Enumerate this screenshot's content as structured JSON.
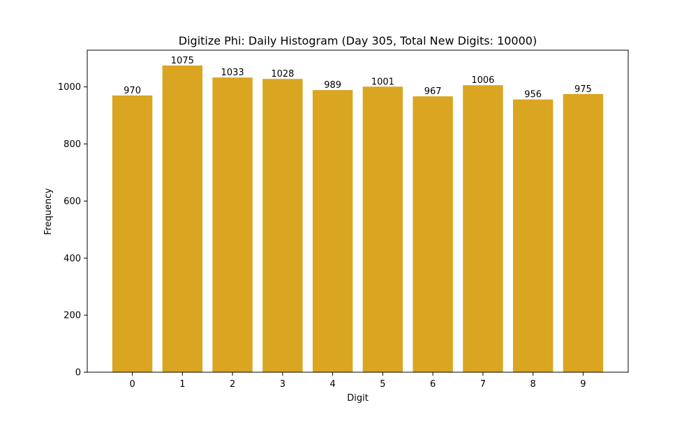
{
  "chart_data": {
    "type": "bar",
    "title": "Digitize Phi: Daily Histogram (Day 305, Total New Digits: 10000)",
    "xlabel": "Digit",
    "ylabel": "Frequency",
    "categories": [
      "0",
      "1",
      "2",
      "3",
      "4",
      "5",
      "6",
      "7",
      "8",
      "9"
    ],
    "values": [
      970,
      1075,
      1033,
      1028,
      989,
      1001,
      967,
      1006,
      956,
      975
    ],
    "ylim": [
      0,
      1128.75
    ],
    "yticks": [
      0,
      200,
      400,
      600,
      800,
      1000
    ],
    "bar_color": "#DAA520",
    "grid": false,
    "legend": "none"
  }
}
